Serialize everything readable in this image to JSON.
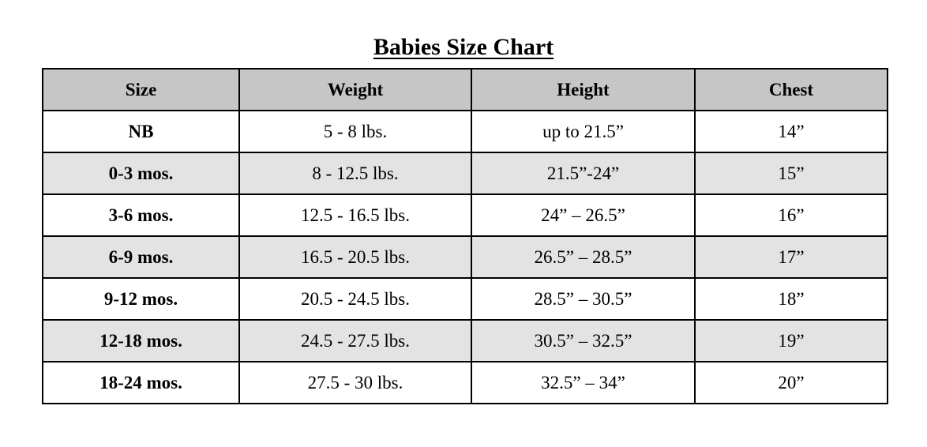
{
  "title": "Babies Size Chart",
  "table": {
    "headers": [
      "Size",
      "Weight",
      "Height",
      "Chest"
    ],
    "rows": [
      {
        "size": "NB",
        "weight": "5 - 8 lbs.",
        "height": "up to 21.5”",
        "chest": "14”"
      },
      {
        "size": "0-3 mos.",
        "weight": "8 - 12.5 lbs.",
        "height": "21.5”-24”",
        "chest": "15”"
      },
      {
        "size": "3-6 mos.",
        "weight": "12.5 - 16.5 lbs.",
        "height": "24” – 26.5”",
        "chest": "16”"
      },
      {
        "size": "6-9 mos.",
        "weight": "16.5 - 20.5 lbs.",
        "height": "26.5” – 28.5”",
        "chest": "17”"
      },
      {
        "size": "9-12 mos.",
        "weight": "20.5 - 24.5 lbs.",
        "height": "28.5” – 30.5”",
        "chest": "18”"
      },
      {
        "size": "12-18 mos.",
        "weight": "24.5 - 27.5 lbs.",
        "height": "30.5” – 32.5”",
        "chest": "19”"
      },
      {
        "size": "18-24 mos.",
        "weight": "27.5 - 30 lbs.",
        "height": "32.5” – 34”",
        "chest": "20”"
      }
    ]
  },
  "colors": {
    "header_bg": "#c6c6c6",
    "shaded_row_bg": "#e3e3e3",
    "border": "#000000"
  }
}
